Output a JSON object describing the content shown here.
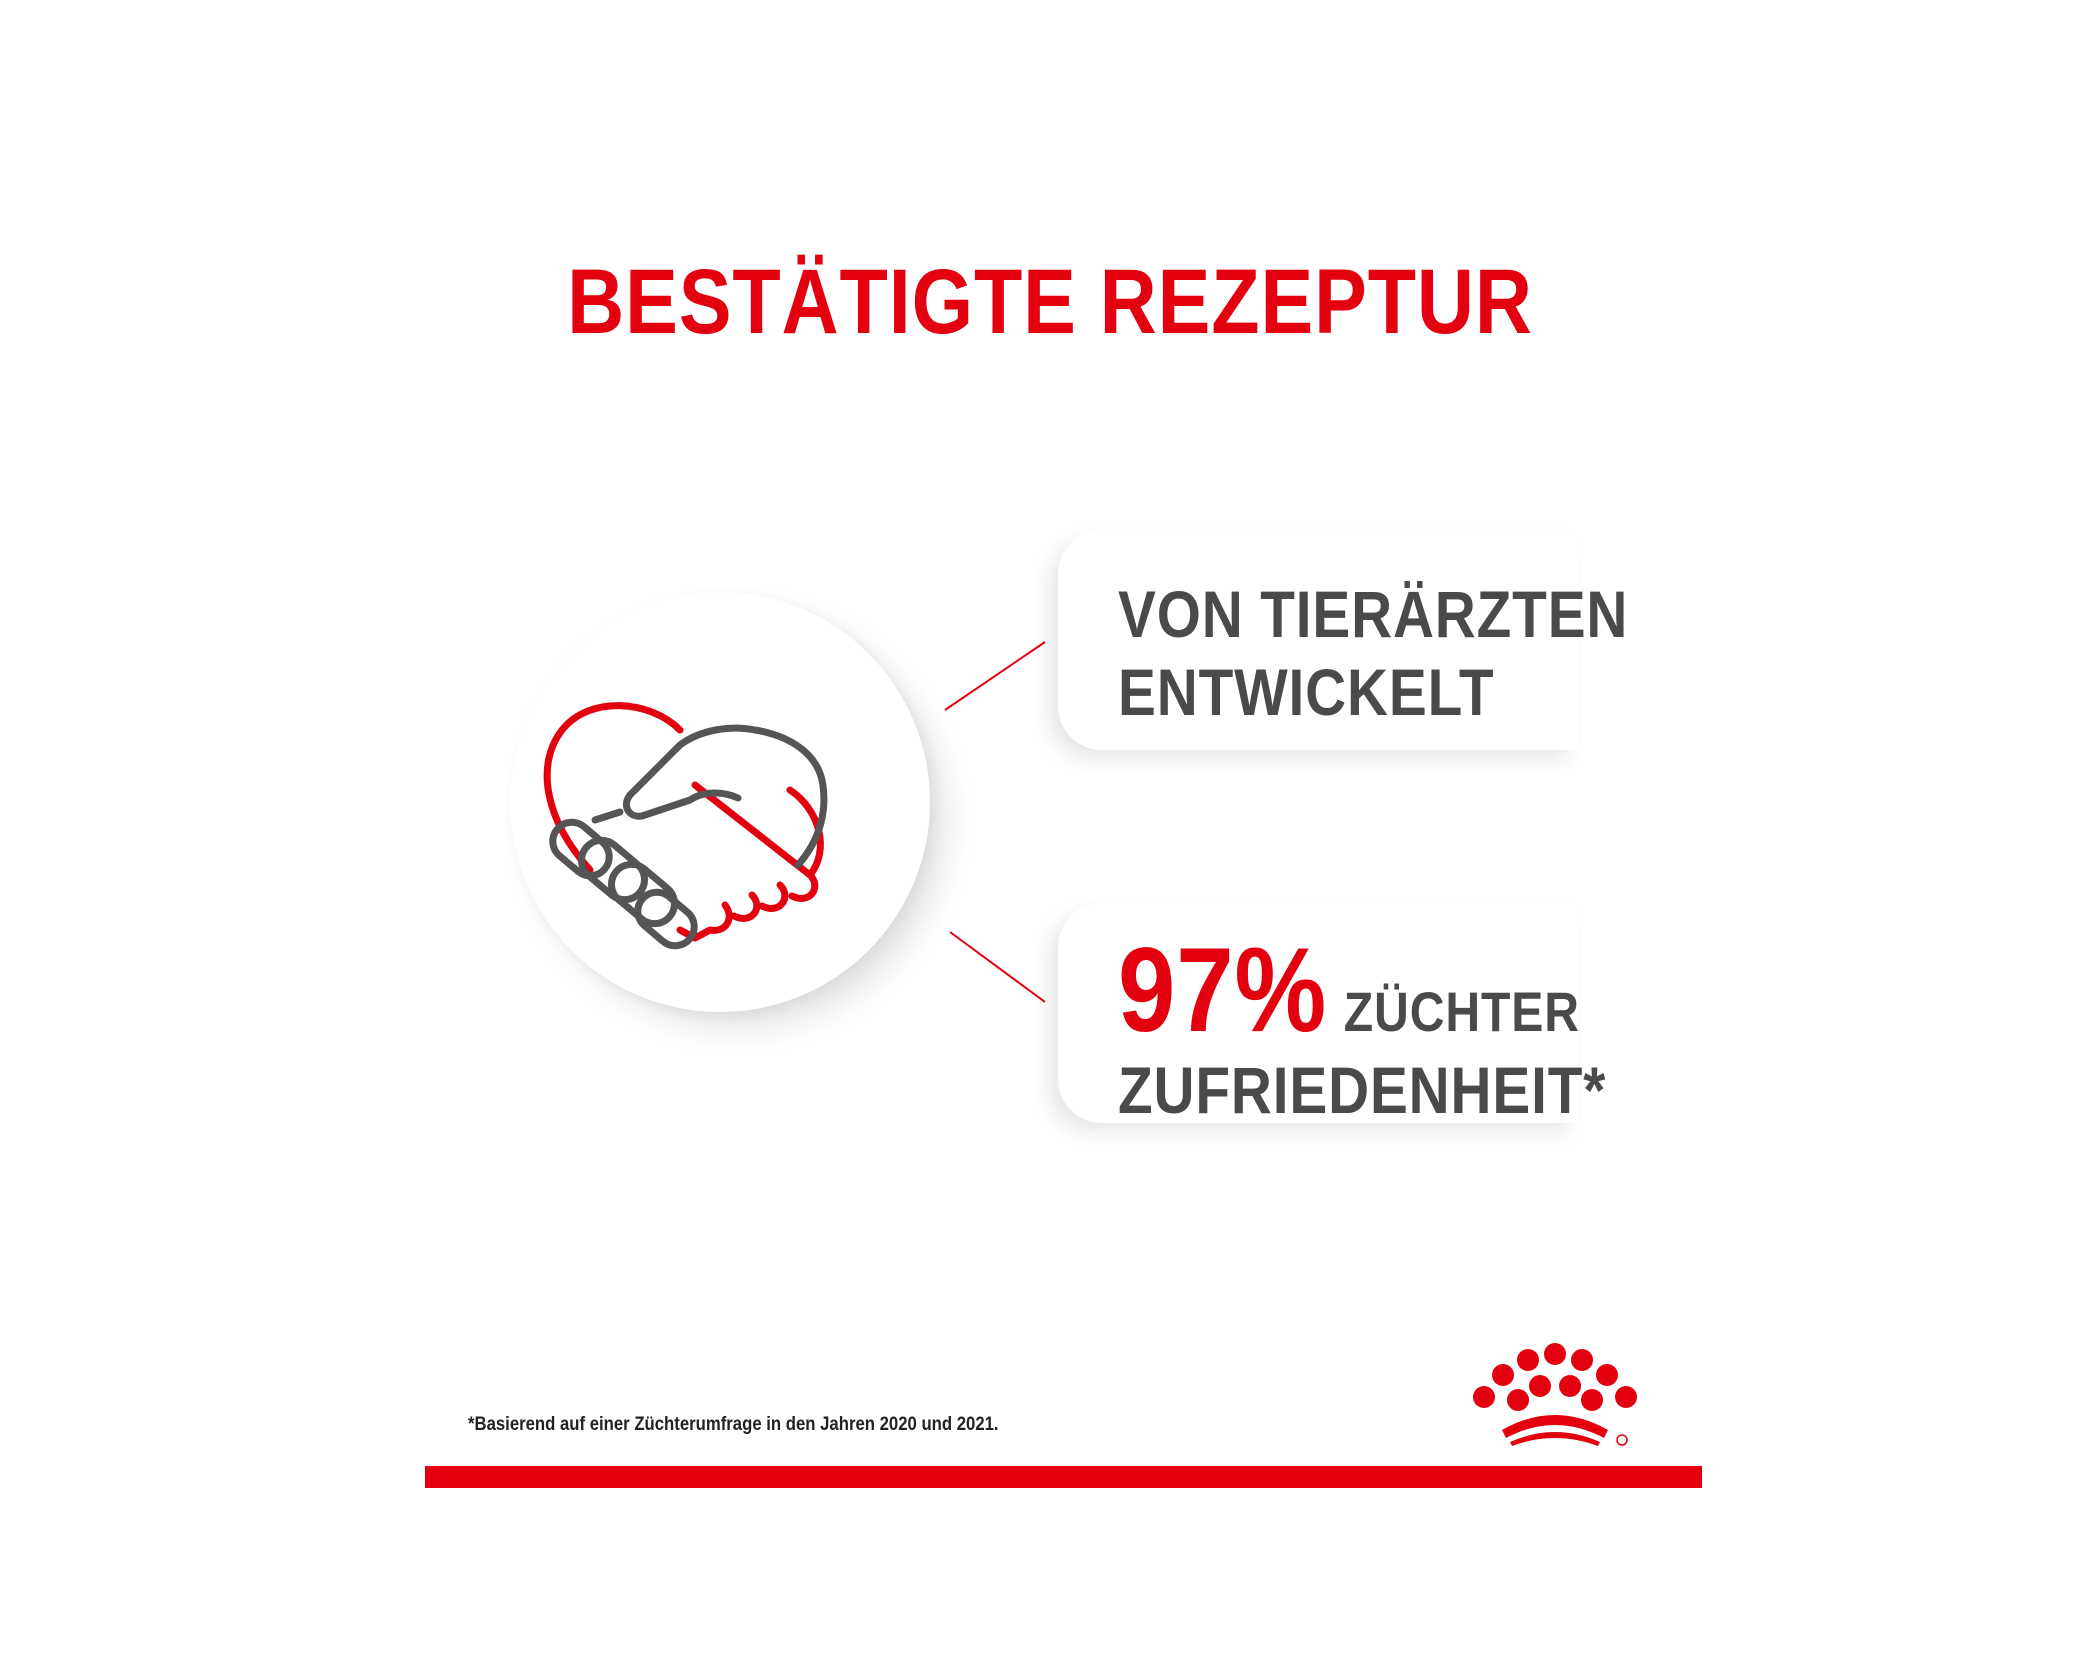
{
  "title": "BESTÄTIGTE REZEPTUR",
  "benefits": [
    {
      "line1": "VON TIERÄRZTEN",
      "line2": "ENTWICKELT"
    },
    {
      "percent": "97%",
      "label_line1": "ZÜCHTER",
      "label_line2": "ZUFRIEDENHEIT*"
    }
  ],
  "footnote": "*Basierend auf einer Züchterumfrage in den Jahren 2020 und 2021.",
  "icons": {
    "main": "handshake-heart-icon",
    "brand": "royal-canin-crown-logo"
  },
  "colors": {
    "brand_red": "#e3000f",
    "text_gray": "#4a4a4a",
    "icon_gray": "#555555"
  }
}
